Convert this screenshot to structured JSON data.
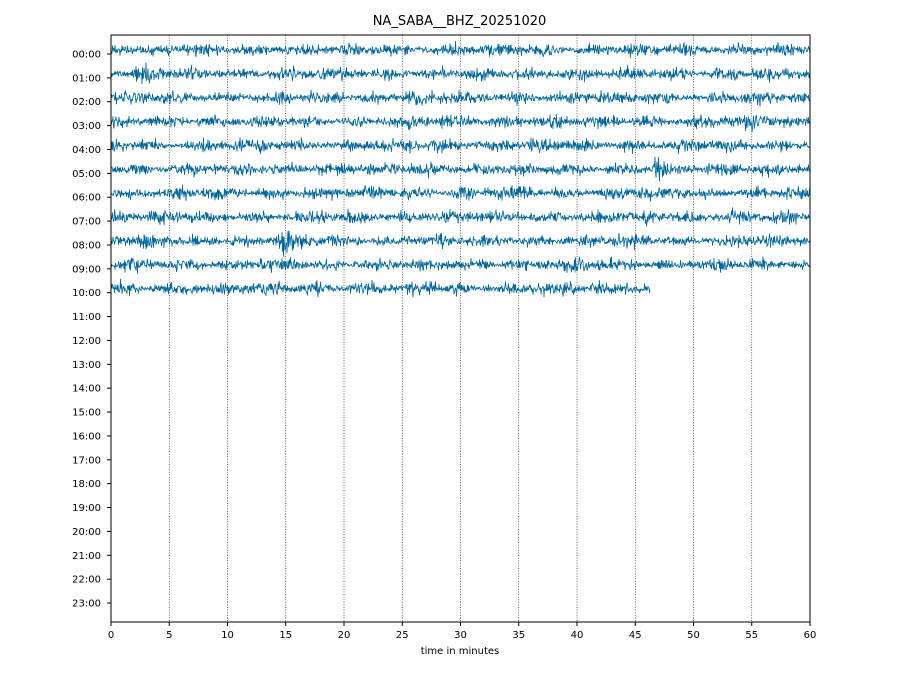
{
  "chart_data": {
    "type": "line",
    "title": "NA_SABA__BHZ_20251020",
    "xlabel": "time in minutes",
    "ylabel": "",
    "xlim": [
      0,
      60
    ],
    "x_ticks": [
      "0",
      "5",
      "10",
      "15",
      "20",
      "25",
      "30",
      "35",
      "40",
      "45",
      "50",
      "55",
      "60"
    ],
    "y_ticks": [
      "00:00",
      "01:00",
      "02:00",
      "03:00",
      "04:00",
      "05:00",
      "06:00",
      "07:00",
      "08:00",
      "09:00",
      "10:00",
      "11:00",
      "12:00",
      "13:00",
      "14:00",
      "15:00",
      "16:00",
      "17:00",
      "18:00",
      "19:00",
      "20:00",
      "21:00",
      "22:00",
      "23:00"
    ],
    "vertical_grid": "dotted",
    "trace_color": "#00669b",
    "traces": [
      {
        "hour": "00:00",
        "end_minute": 60,
        "events": []
      },
      {
        "hour": "01:00",
        "end_minute": 60,
        "events": [
          {
            "minute": 2.8,
            "strength": 1.8
          }
        ]
      },
      {
        "hour": "02:00",
        "end_minute": 60,
        "events": [
          {
            "minute": 23,
            "strength": 1.5
          }
        ]
      },
      {
        "hour": "03:00",
        "end_minute": 60,
        "events": [
          {
            "minute": 55.5,
            "strength": 1.6
          }
        ]
      },
      {
        "hour": "04:00",
        "end_minute": 60,
        "events": [
          {
            "minute": 44.5,
            "strength": 1.5
          }
        ]
      },
      {
        "hour": "05:00",
        "end_minute": 60,
        "events": [
          {
            "minute": 47,
            "strength": 3.2
          },
          {
            "minute": 53.5,
            "strength": 1.6
          }
        ]
      },
      {
        "hour": "06:00",
        "end_minute": 60,
        "events": []
      },
      {
        "hour": "07:00",
        "end_minute": 60,
        "events": [
          {
            "minute": 53.5,
            "strength": 1.5
          }
        ]
      },
      {
        "hour": "08:00",
        "end_minute": 60,
        "events": [
          {
            "minute": 15,
            "strength": 3.5
          }
        ]
      },
      {
        "hour": "09:00",
        "end_minute": 60,
        "events": []
      },
      {
        "hour": "10:00",
        "end_minute": 46.3,
        "events": [
          {
            "minute": 6.8,
            "strength": 1.8
          },
          {
            "minute": 27.5,
            "strength": 1.4
          },
          {
            "minute": 44.5,
            "strength": 1.6
          }
        ]
      }
    ]
  }
}
